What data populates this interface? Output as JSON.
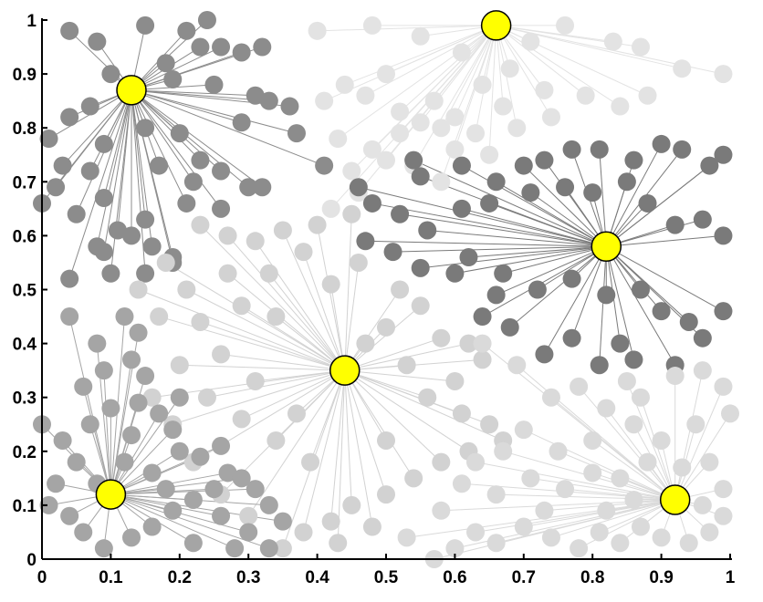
{
  "chart_data": {
    "type": "scatter",
    "title": "",
    "xlabel": "",
    "ylabel": "",
    "xlim": [
      0,
      1
    ],
    "ylim": [
      0,
      1
    ],
    "grid": false,
    "legend": "none",
    "x_ticks": [
      "0",
      "0.1",
      "0.2",
      "0.3",
      "0.4",
      "0.5",
      "0.6",
      "0.7",
      "0.8",
      "0.9",
      "1"
    ],
    "y_ticks": [
      "0",
      "0.1",
      "0.2",
      "0.3",
      "0.4",
      "0.5",
      "0.6",
      "0.7",
      "0.8",
      "0.9",
      "1"
    ],
    "clusters": [
      {
        "center": [
          0.13,
          0.87
        ],
        "color": "#8c8c8c",
        "points": [
          [
            0.04,
            0.98
          ],
          [
            0.08,
            0.96
          ],
          [
            0.15,
            0.99
          ],
          [
            0.21,
            0.98
          ],
          [
            0.24,
            1.0
          ],
          [
            0.18,
            0.92
          ],
          [
            0.23,
            0.95
          ],
          [
            0.26,
            0.95
          ],
          [
            0.29,
            0.94
          ],
          [
            0.32,
            0.95
          ],
          [
            0.1,
            0.9
          ],
          [
            0.19,
            0.89
          ],
          [
            0.25,
            0.88
          ],
          [
            0.31,
            0.86
          ],
          [
            0.33,
            0.85
          ],
          [
            0.29,
            0.81
          ],
          [
            0.37,
            0.79
          ],
          [
            0.41,
            0.73
          ],
          [
            0.36,
            0.84
          ],
          [
            0.07,
            0.84
          ],
          [
            0.01,
            0.78
          ],
          [
            0.03,
            0.73
          ],
          [
            0.09,
            0.77
          ],
          [
            0.15,
            0.8
          ],
          [
            0.2,
            0.79
          ],
          [
            0.23,
            0.74
          ],
          [
            0.17,
            0.73
          ],
          [
            0.07,
            0.72
          ],
          [
            0.02,
            0.69
          ],
          [
            0.0,
            0.66
          ],
          [
            0.05,
            0.64
          ],
          [
            0.09,
            0.67
          ],
          [
            0.11,
            0.61
          ],
          [
            0.15,
            0.63
          ],
          [
            0.21,
            0.66
          ],
          [
            0.26,
            0.65
          ],
          [
            0.3,
            0.69
          ],
          [
            0.32,
            0.69
          ],
          [
            0.26,
            0.72
          ],
          [
            0.22,
            0.7
          ],
          [
            0.16,
            0.58
          ],
          [
            0.19,
            0.56
          ],
          [
            0.13,
            0.6
          ],
          [
            0.08,
            0.58
          ],
          [
            0.04,
            0.52
          ],
          [
            0.1,
            0.53
          ],
          [
            0.15,
            0.53
          ],
          [
            0.19,
            0.55
          ],
          [
            0.09,
            0.57
          ],
          [
            0.04,
            0.82
          ]
        ]
      },
      {
        "center": [
          0.66,
          0.99
        ],
        "color": "#e3e3e3",
        "points": [
          [
            0.4,
            0.98
          ],
          [
            0.48,
            0.99
          ],
          [
            0.55,
            0.97
          ],
          [
            0.61,
            0.94
          ],
          [
            0.71,
            0.96
          ],
          [
            0.76,
            0.99
          ],
          [
            0.83,
            0.96
          ],
          [
            0.87,
            0.95
          ],
          [
            0.93,
            0.91
          ],
          [
            0.99,
            0.9
          ],
          [
            0.41,
            0.85
          ],
          [
            0.44,
            0.88
          ],
          [
            0.5,
            0.9
          ],
          [
            0.47,
            0.86
          ],
          [
            0.52,
            0.83
          ],
          [
            0.57,
            0.85
          ],
          [
            0.55,
            0.81
          ],
          [
            0.6,
            0.82
          ],
          [
            0.64,
            0.88
          ],
          [
            0.68,
            0.91
          ],
          [
            0.73,
            0.87
          ],
          [
            0.74,
            0.82
          ],
          [
            0.79,
            0.86
          ],
          [
            0.84,
            0.84
          ],
          [
            0.88,
            0.86
          ],
          [
            0.43,
            0.78
          ],
          [
            0.48,
            0.76
          ],
          [
            0.52,
            0.79
          ],
          [
            0.6,
            0.76
          ],
          [
            0.65,
            0.75
          ],
          [
            0.69,
            0.8
          ],
          [
            0.45,
            0.72
          ],
          [
            0.5,
            0.74
          ],
          [
            0.54,
            0.73
          ],
          [
            0.58,
            0.8
          ],
          [
            0.63,
            0.79
          ],
          [
            0.67,
            0.84
          ],
          [
            0.46,
            0.68
          ],
          [
            0.42,
            0.65
          ],
          [
            0.58,
            0.7
          ]
        ]
      },
      {
        "center": [
          0.82,
          0.58
        ],
        "color": "#7a7a7a",
        "points": [
          [
            0.54,
            0.74
          ],
          [
            0.55,
            0.71
          ],
          [
            0.61,
            0.73
          ],
          [
            0.66,
            0.7
          ],
          [
            0.7,
            0.73
          ],
          [
            0.73,
            0.74
          ],
          [
            0.77,
            0.76
          ],
          [
            0.81,
            0.76
          ],
          [
            0.86,
            0.74
          ],
          [
            0.9,
            0.77
          ],
          [
            0.93,
            0.76
          ],
          [
            0.97,
            0.73
          ],
          [
            0.99,
            0.75
          ],
          [
            0.46,
            0.69
          ],
          [
            0.48,
            0.66
          ],
          [
            0.52,
            0.64
          ],
          [
            0.56,
            0.61
          ],
          [
            0.61,
            0.65
          ],
          [
            0.65,
            0.66
          ],
          [
            0.71,
            0.68
          ],
          [
            0.76,
            0.69
          ],
          [
            0.8,
            0.68
          ],
          [
            0.85,
            0.7
          ],
          [
            0.88,
            0.66
          ],
          [
            0.92,
            0.62
          ],
          [
            0.96,
            0.63
          ],
          [
            0.99,
            0.6
          ],
          [
            0.47,
            0.59
          ],
          [
            0.51,
            0.57
          ],
          [
            0.55,
            0.54
          ],
          [
            0.62,
            0.56
          ],
          [
            0.67,
            0.53
          ],
          [
            0.72,
            0.5
          ],
          [
            0.77,
            0.52
          ],
          [
            0.82,
            0.49
          ],
          [
            0.87,
            0.5
          ],
          [
            0.9,
            0.46
          ],
          [
            0.94,
            0.44
          ],
          [
            0.96,
            0.41
          ],
          [
            0.99,
            0.46
          ],
          [
            0.64,
            0.45
          ],
          [
            0.68,
            0.43
          ],
          [
            0.73,
            0.38
          ],
          [
            0.77,
            0.41
          ],
          [
            0.81,
            0.36
          ],
          [
            0.84,
            0.4
          ],
          [
            0.86,
            0.37
          ],
          [
            0.92,
            0.36
          ],
          [
            0.66,
            0.49
          ],
          [
            0.6,
            0.53
          ]
        ]
      },
      {
        "center": [
          0.44,
          0.35
        ],
        "color": "#d2d2d2",
        "points": [
          [
            0.23,
            0.62
          ],
          [
            0.27,
            0.6
          ],
          [
            0.31,
            0.59
          ],
          [
            0.35,
            0.61
          ],
          [
            0.4,
            0.62
          ],
          [
            0.45,
            0.64
          ],
          [
            0.38,
            0.57
          ],
          [
            0.33,
            0.53
          ],
          [
            0.27,
            0.53
          ],
          [
            0.21,
            0.5
          ],
          [
            0.18,
            0.55
          ],
          [
            0.14,
            0.5
          ],
          [
            0.17,
            0.45
          ],
          [
            0.23,
            0.44
          ],
          [
            0.29,
            0.47
          ],
          [
            0.34,
            0.45
          ],
          [
            0.42,
            0.51
          ],
          [
            0.46,
            0.55
          ],
          [
            0.52,
            0.5
          ],
          [
            0.55,
            0.47
          ],
          [
            0.5,
            0.43
          ],
          [
            0.58,
            0.41
          ],
          [
            0.62,
            0.4
          ],
          [
            0.64,
            0.37
          ],
          [
            0.6,
            0.33
          ],
          [
            0.56,
            0.3
          ],
          [
            0.61,
            0.27
          ],
          [
            0.65,
            0.25
          ],
          [
            0.67,
            0.22
          ],
          [
            0.62,
            0.2
          ],
          [
            0.58,
            0.18
          ],
          [
            0.54,
            0.15
          ],
          [
            0.5,
            0.12
          ],
          [
            0.45,
            0.1
          ],
          [
            0.42,
            0.07
          ],
          [
            0.38,
            0.05
          ],
          [
            0.35,
            0.02
          ],
          [
            0.43,
            0.03
          ],
          [
            0.48,
            0.06
          ],
          [
            0.3,
            0.08
          ],
          [
            0.26,
            0.12
          ],
          [
            0.22,
            0.18
          ],
          [
            0.19,
            0.25
          ],
          [
            0.16,
            0.3
          ],
          [
            0.2,
            0.36
          ],
          [
            0.26,
            0.38
          ],
          [
            0.31,
            0.33
          ],
          [
            0.29,
            0.26
          ],
          [
            0.34,
            0.22
          ],
          [
            0.39,
            0.18
          ],
          [
            0.37,
            0.27
          ],
          [
            0.5,
            0.22
          ],
          [
            0.53,
            0.36
          ],
          [
            0.47,
            0.4
          ],
          [
            0.24,
            0.3
          ]
        ]
      },
      {
        "center": [
          0.1,
          0.12
        ],
        "color": "#a5a5a5",
        "points": [
          [
            0.04,
            0.45
          ],
          [
            0.08,
            0.4
          ],
          [
            0.12,
            0.45
          ],
          [
            0.14,
            0.42
          ],
          [
            0.13,
            0.37
          ],
          [
            0.09,
            0.35
          ],
          [
            0.06,
            0.32
          ],
          [
            0.1,
            0.28
          ],
          [
            0.15,
            0.34
          ],
          [
            0.14,
            0.29
          ],
          [
            0.17,
            0.27
          ],
          [
            0.2,
            0.3
          ],
          [
            0.19,
            0.24
          ],
          [
            0.13,
            0.23
          ],
          [
            0.07,
            0.25
          ],
          [
            0.03,
            0.22
          ],
          [
            0.0,
            0.25
          ],
          [
            0.05,
            0.18
          ],
          [
            0.12,
            0.18
          ],
          [
            0.16,
            0.16
          ],
          [
            0.2,
            0.2
          ],
          [
            0.23,
            0.19
          ],
          [
            0.26,
            0.21
          ],
          [
            0.27,
            0.16
          ],
          [
            0.29,
            0.15
          ],
          [
            0.31,
            0.13
          ],
          [
            0.33,
            0.1
          ],
          [
            0.35,
            0.07
          ],
          [
            0.3,
            0.05
          ],
          [
            0.26,
            0.08
          ],
          [
            0.22,
            0.11
          ],
          [
            0.19,
            0.09
          ],
          [
            0.16,
            0.06
          ],
          [
            0.13,
            0.04
          ],
          [
            0.09,
            0.02
          ],
          [
            0.06,
            0.05
          ],
          [
            0.04,
            0.08
          ],
          [
            0.01,
            0.1
          ],
          [
            0.02,
            0.14
          ],
          [
            0.08,
            0.14
          ],
          [
            0.22,
            0.03
          ],
          [
            0.28,
            0.02
          ],
          [
            0.33,
            0.02
          ],
          [
            0.18,
            0.13
          ],
          [
            0.25,
            0.13
          ]
        ]
      },
      {
        "center": [
          0.92,
          0.11
        ],
        "color": "#dadada",
        "points": [
          [
            0.64,
            0.4
          ],
          [
            0.69,
            0.36
          ],
          [
            0.74,
            0.3
          ],
          [
            0.78,
            0.32
          ],
          [
            0.82,
            0.28
          ],
          [
            0.85,
            0.33
          ],
          [
            0.87,
            0.3
          ],
          [
            0.92,
            0.34
          ],
          [
            0.96,
            0.35
          ],
          [
            0.99,
            0.32
          ],
          [
            1.0,
            0.27
          ],
          [
            0.95,
            0.25
          ],
          [
            0.9,
            0.22
          ],
          [
            0.86,
            0.25
          ],
          [
            0.8,
            0.22
          ],
          [
            0.75,
            0.2
          ],
          [
            0.7,
            0.24
          ],
          [
            0.67,
            0.2
          ],
          [
            0.63,
            0.18
          ],
          [
            0.61,
            0.14
          ],
          [
            0.66,
            0.12
          ],
          [
            0.71,
            0.15
          ],
          [
            0.76,
            0.13
          ],
          [
            0.8,
            0.16
          ],
          [
            0.84,
            0.15
          ],
          [
            0.88,
            0.18
          ],
          [
            0.93,
            0.17
          ],
          [
            0.97,
            0.18
          ],
          [
            0.99,
            0.13
          ],
          [
            0.96,
            0.1
          ],
          [
            0.99,
            0.08
          ],
          [
            0.97,
            0.05
          ],
          [
            0.94,
            0.03
          ],
          [
            0.9,
            0.04
          ],
          [
            0.87,
            0.06
          ],
          [
            0.84,
            0.03
          ],
          [
            0.81,
            0.05
          ],
          [
            0.78,
            0.02
          ],
          [
            0.74,
            0.04
          ],
          [
            0.7,
            0.06
          ],
          [
            0.66,
            0.03
          ],
          [
            0.63,
            0.05
          ],
          [
            0.6,
            0.02
          ],
          [
            0.57,
            0.0
          ],
          [
            0.53,
            0.04
          ],
          [
            0.58,
            0.09
          ],
          [
            0.73,
            0.09
          ],
          [
            0.82,
            0.09
          ],
          [
            0.86,
            0.11
          ]
        ]
      }
    ],
    "center_marker": {
      "color": "#ffff00",
      "edge": "#000000"
    }
  }
}
